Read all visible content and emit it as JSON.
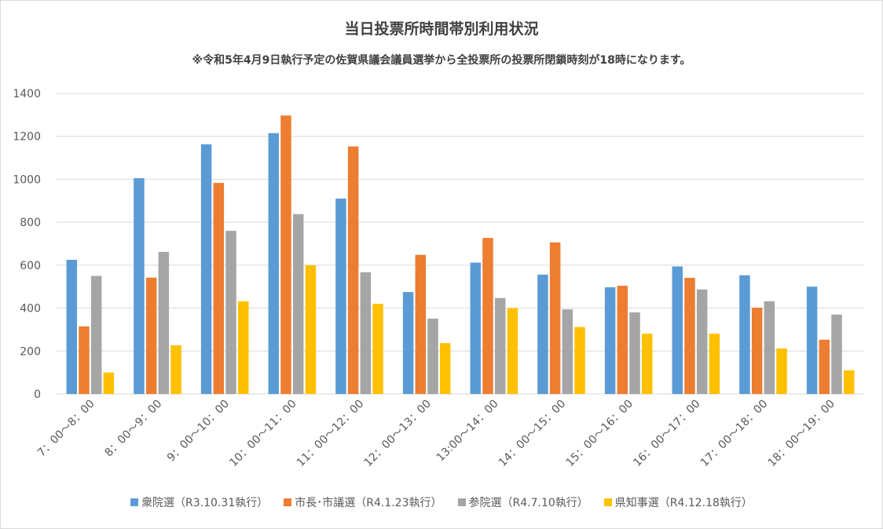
{
  "chart_data": {
    "type": "bar",
    "title": "当日投票所時間帯別利用状況",
    "subtitle": "※令和5年4月9日執行予定の佐賀県議会議員選挙から全投票所の投票所閉鎖時刻が18時になります。",
    "categories": [
      "7：00～8：00",
      "8：00～9：00",
      "9：00～10：00",
      "10：00～11：00",
      "11：00～12：00",
      "12：00～13：00",
      "13:00～14：00",
      "14：00～15：00",
      "15：00～16：00",
      "16：00～17：00",
      "17：00～18：00",
      "18：00～19：00"
    ],
    "series": [
      {
        "name": "衆院選（R3.10.31執行）",
        "color": "#5b9bd5",
        "values": [
          625,
          1005,
          1163,
          1215,
          910,
          475,
          612,
          556,
          497,
          594,
          553,
          500
        ]
      },
      {
        "name": "市長･市議選（R4.1.23執行）",
        "color": "#ed7d31",
        "values": [
          315,
          542,
          983,
          1297,
          1153,
          648,
          727,
          706,
          504,
          541,
          402,
          253
        ]
      },
      {
        "name": "参院選（R4.7.10執行）",
        "color": "#a5a5a5",
        "values": [
          550,
          662,
          760,
          838,
          567,
          351,
          447,
          394,
          380,
          487,
          432,
          370
        ]
      },
      {
        "name": "県知事選（R4.12.18執行）",
        "color": "#ffc000",
        "values": [
          100,
          227,
          432,
          600,
          420,
          237,
          400,
          312,
          281,
          281,
          212,
          110
        ]
      }
    ],
    "ylim": [
      0,
      1400
    ],
    "yticks": [
      0,
      200,
      400,
      600,
      800,
      1000,
      1200,
      1400
    ],
    "grid": true,
    "legend": "bottom"
  }
}
